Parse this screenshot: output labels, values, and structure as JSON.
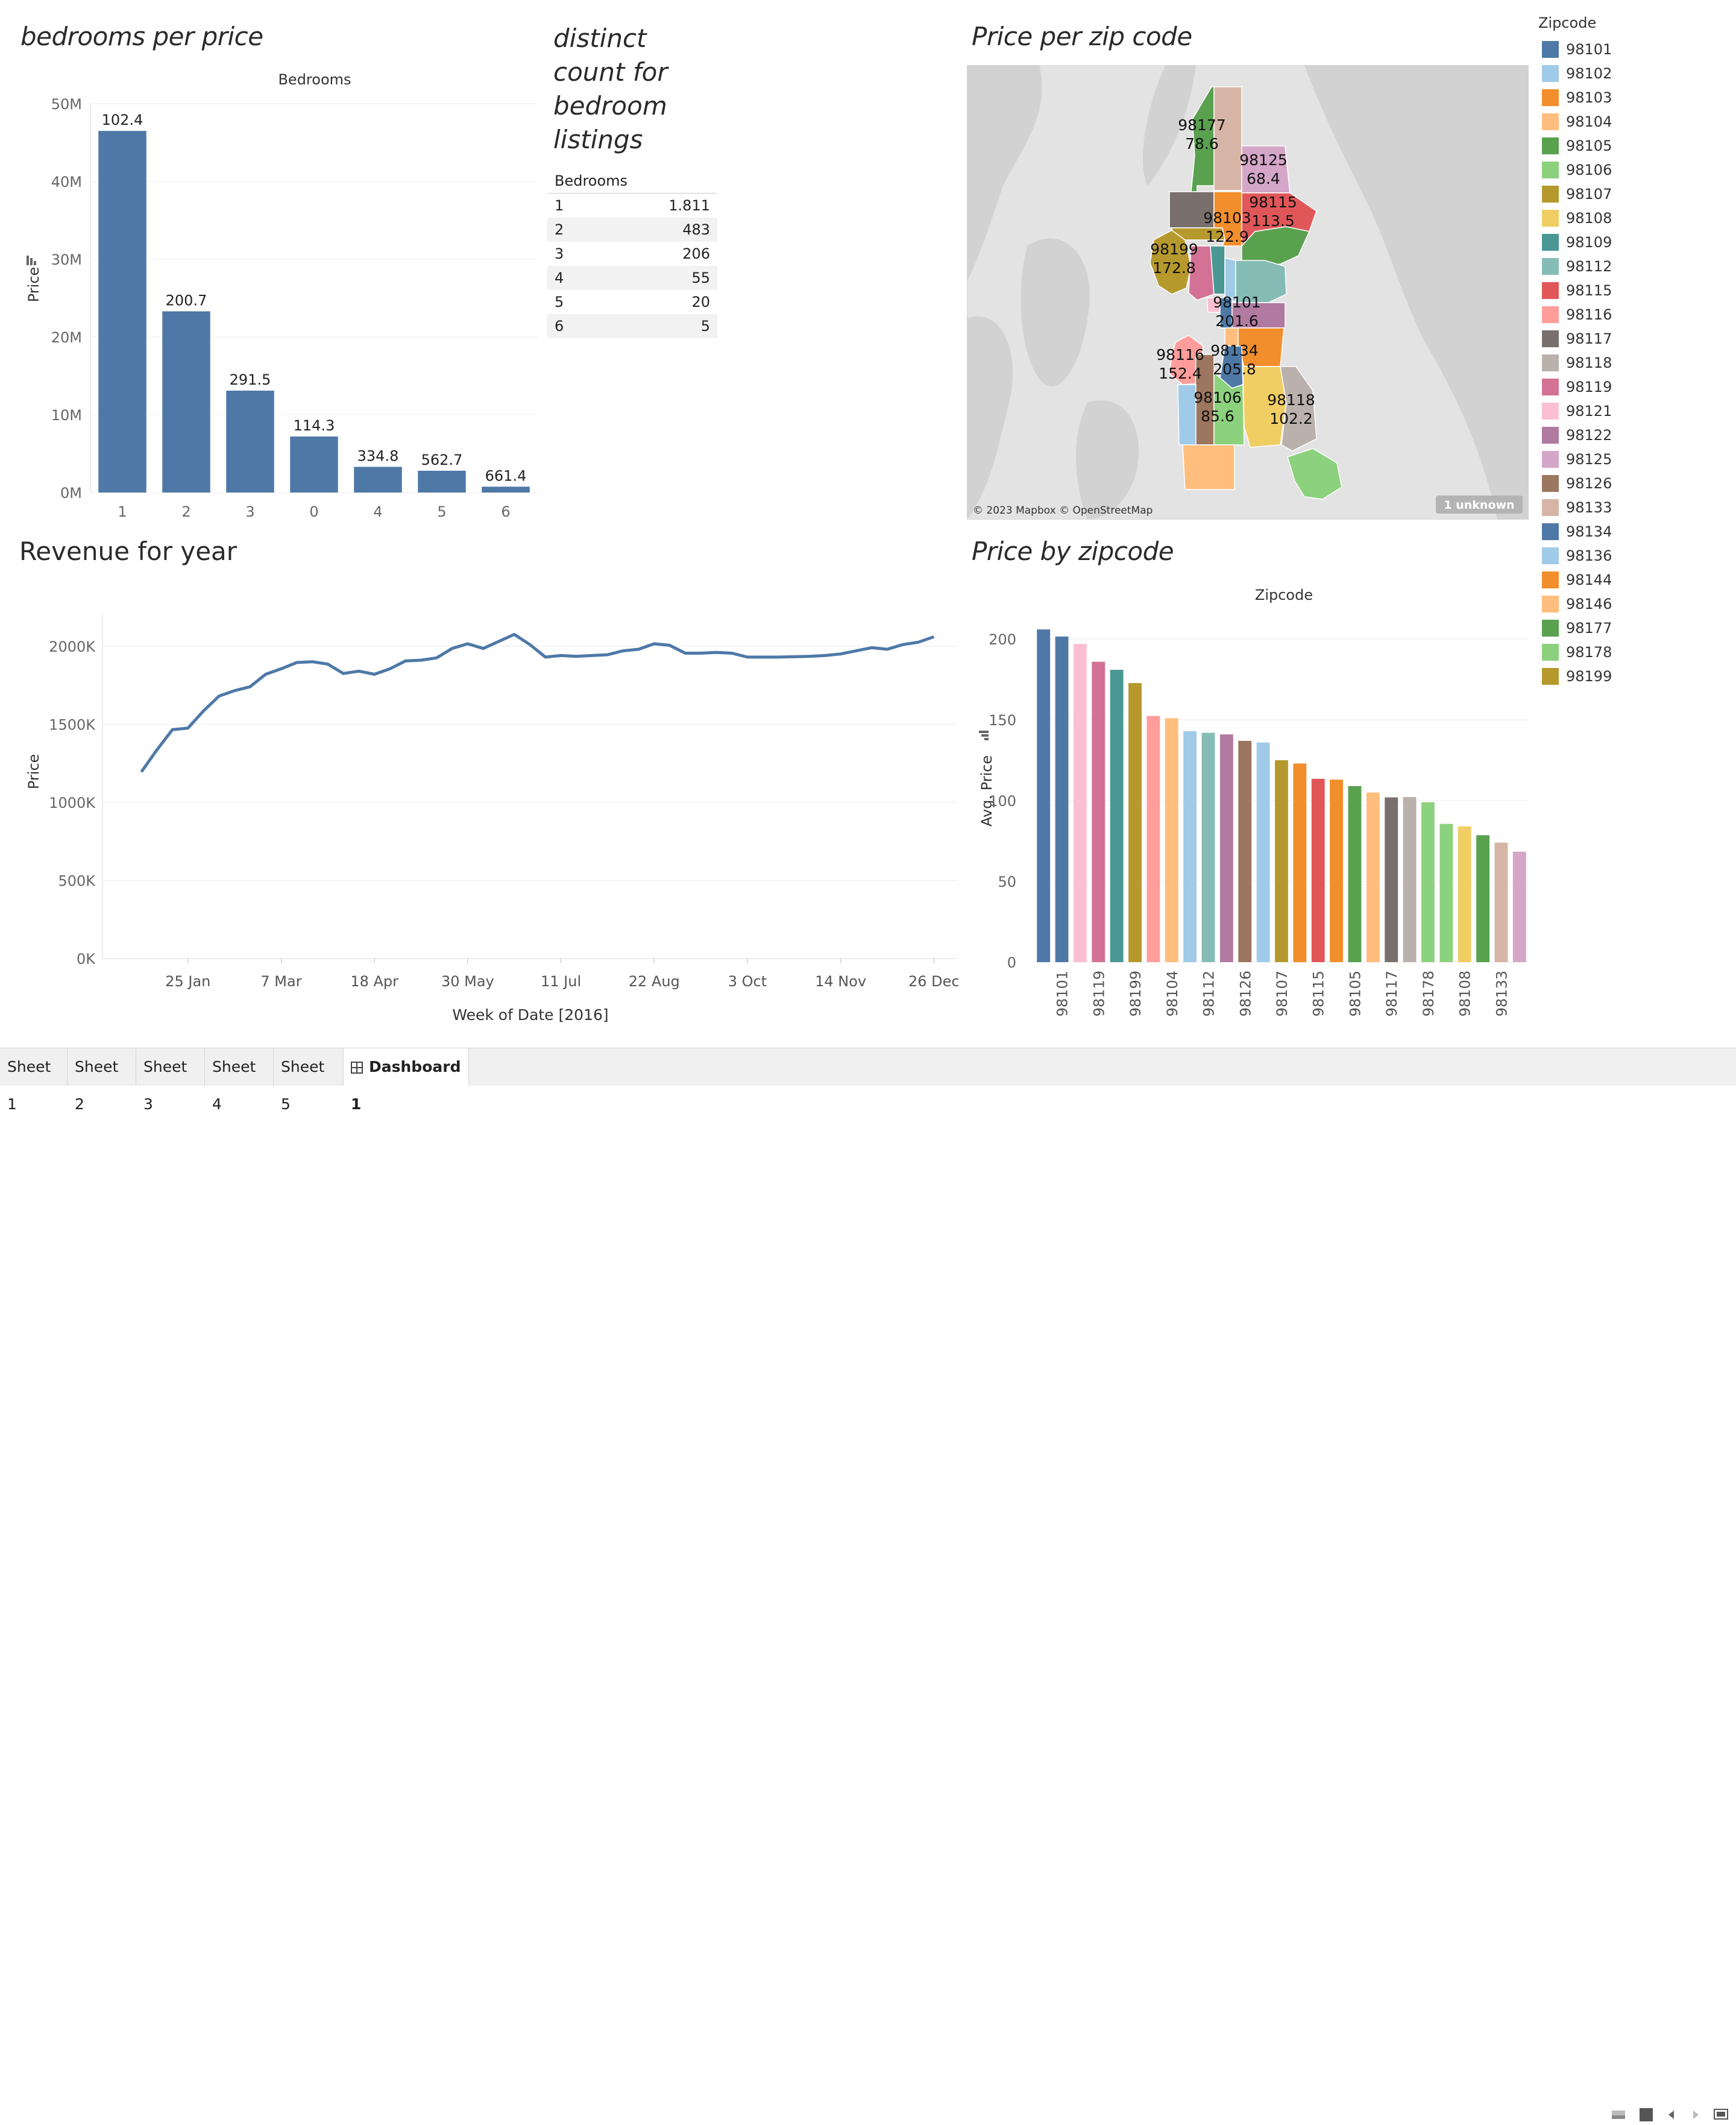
{
  "dashboard": {
    "titles": {
      "bedrooms": "bedrooms per price",
      "distinct_lines": [
        "distinct",
        "count for",
        "bedroom",
        "listings"
      ],
      "map": "Price per zip code",
      "revenue": "Revenue for year",
      "zipbars": "Price by zipcode"
    }
  },
  "bedroom_chart": {
    "type": "bar",
    "xlabel": "Bedrooms",
    "ylabel": "Price",
    "ylim": [
      0,
      50000000
    ],
    "yticks": [
      "0M",
      "10M",
      "20M",
      "30M",
      "40M",
      "50M"
    ],
    "ytick_values": [
      0,
      10000000,
      20000000,
      30000000,
      40000000,
      50000000
    ],
    "categories": [
      "1",
      "2",
      "3",
      "0",
      "4",
      "5",
      "6"
    ],
    "values": [
      46500000,
      23300000,
      13100000,
      7200000,
      3300000,
      2800000,
      750000
    ],
    "labels": [
      "102.4",
      "200.7",
      "291.5",
      "114.3",
      "334.8",
      "562.7",
      "661.4"
    ],
    "color": "#4e79a7"
  },
  "distinct_table": {
    "header": "Bedrooms",
    "rows": [
      {
        "bedrooms": "1",
        "count": "1.811"
      },
      {
        "bedrooms": "2",
        "count": "483"
      },
      {
        "bedrooms": "3",
        "count": "206"
      },
      {
        "bedrooms": "4",
        "count": "55"
      },
      {
        "bedrooms": "5",
        "count": "20"
      },
      {
        "bedrooms": "6",
        "count": "5"
      }
    ]
  },
  "map": {
    "attribution": "© 2023 Mapbox © OpenStreetMap",
    "badge": "1 unknown",
    "labels": [
      {
        "zip": "98177",
        "value": "78.6"
      },
      {
        "zip": "98125",
        "value": "68.4"
      },
      {
        "zip": "98115",
        "value": "113.5"
      },
      {
        "zip": "98103",
        "value": "122.9"
      },
      {
        "zip": "98199",
        "value": "172.8"
      },
      {
        "zip": "98101",
        "value": "201.6"
      },
      {
        "zip": "98116",
        "value": "152.4"
      },
      {
        "zip": "98134",
        "value": "205.8"
      },
      {
        "zip": "98106",
        "value": "85.6"
      },
      {
        "zip": "98118",
        "value": "102.2"
      }
    ]
  },
  "revenue_chart": {
    "type": "line",
    "xlabel": "Week of Date [2016]",
    "ylabel": "Price",
    "ylim": [
      0,
      2200000
    ],
    "yticks": [
      "0K",
      "500K",
      "1000K",
      "1500K",
      "2000K"
    ],
    "ytick_values": [
      0,
      500000,
      1000000,
      1500000,
      2000000
    ],
    "xticks": [
      "25 Jan",
      "7 Mar",
      "18 Apr",
      "30 May",
      "11 Jul",
      "22 Aug",
      "3 Oct",
      "14 Nov",
      "26 Dec"
    ],
    "xtick_weeks": [
      4,
      10,
      16,
      22,
      28,
      34,
      40,
      46,
      52
    ],
    "xrange": [
      -1.5,
      53.5
    ],
    "weeks": [
      1,
      2,
      3,
      4,
      5,
      6,
      7,
      8,
      9,
      10,
      11,
      12,
      13,
      14,
      15,
      16,
      17,
      18,
      19,
      20,
      21,
      22,
      23,
      24,
      25,
      26,
      27,
      28,
      29,
      30,
      31,
      32,
      33,
      34,
      35,
      36,
      37,
      38,
      39,
      40,
      41,
      42,
      43,
      44,
      45,
      46,
      47,
      48,
      49,
      50,
      51,
      52
    ],
    "values": [
      1195000,
      1335000,
      1465000,
      1475000,
      1585000,
      1680000,
      1715000,
      1740000,
      1820000,
      1855000,
      1895000,
      1900000,
      1885000,
      1825000,
      1840000,
      1820000,
      1855000,
      1905000,
      1910000,
      1925000,
      1985000,
      2015000,
      1985000,
      2030000,
      2075000,
      2010000,
      1930000,
      1940000,
      1935000,
      1940000,
      1945000,
      1970000,
      1980000,
      2015000,
      2005000,
      1955000,
      1955000,
      1960000,
      1955000,
      1930000,
      1930000,
      1930000,
      1932000,
      1935000,
      1940000,
      1950000,
      1970000,
      1990000,
      1980000,
      2010000,
      2025000,
      2060000
    ],
    "color": "#4e79a7"
  },
  "zip_chart": {
    "type": "bar",
    "xlabel": "Zipcode",
    "ylabel": "Avg. Price",
    "ylim": [
      0,
      215
    ],
    "yticks": [
      "0",
      "50",
      "100",
      "150",
      "200"
    ],
    "ytick_values": [
      0,
      50,
      100,
      150,
      200
    ],
    "xticklabels": [
      "98101",
      "98119",
      "98199",
      "98104",
      "98112",
      "98126",
      "98107",
      "98115",
      "98105",
      "98117",
      "98178",
      "98108",
      "98133"
    ],
    "categories": [
      "98134",
      "98101",
      "98121",
      "98119",
      "98109",
      "98199",
      "98116",
      "98104",
      "98102",
      "98112",
      "98122",
      "98126",
      "98136",
      "98107",
      "98103",
      "98115",
      "98144",
      "98105",
      "98146",
      "98117",
      "98118",
      "98178",
      "98106",
      "98108",
      "98177",
      "98133",
      "98125"
    ],
    "values": [
      206,
      201.6,
      197,
      186,
      181,
      172.8,
      152.4,
      151,
      143,
      142,
      141,
      137,
      136,
      125,
      123,
      113.5,
      113,
      109,
      105,
      102,
      102.2,
      99,
      85.6,
      84,
      78.6,
      74,
      68.4
    ]
  },
  "legend": {
    "title": "Zipcode",
    "items": [
      {
        "zip": "98101",
        "color": "#4e79a7"
      },
      {
        "zip": "98102",
        "color": "#a0cbe8"
      },
      {
        "zip": "98103",
        "color": "#f28e2b"
      },
      {
        "zip": "98104",
        "color": "#ffbe7d"
      },
      {
        "zip": "98105",
        "color": "#59a14f"
      },
      {
        "zip": "98106",
        "color": "#8cd17d"
      },
      {
        "zip": "98107",
        "color": "#b6992d"
      },
      {
        "zip": "98108",
        "color": "#f1ce63"
      },
      {
        "zip": "98109",
        "color": "#499894"
      },
      {
        "zip": "98112",
        "color": "#86bcb6"
      },
      {
        "zip": "98115",
        "color": "#e15759"
      },
      {
        "zip": "98116",
        "color": "#ff9d9a"
      },
      {
        "zip": "98117",
        "color": "#79706e"
      },
      {
        "zip": "98118",
        "color": "#bab0ac"
      },
      {
        "zip": "98119",
        "color": "#d37295"
      },
      {
        "zip": "98121",
        "color": "#fabfd2"
      },
      {
        "zip": "98122",
        "color": "#b07aa1"
      },
      {
        "zip": "98125",
        "color": "#d4a6c8"
      },
      {
        "zip": "98126",
        "color": "#9d7660"
      },
      {
        "zip": "98133",
        "color": "#d7b5a6"
      },
      {
        "zip": "98134",
        "color": "#4e79a7"
      },
      {
        "zip": "98136",
        "color": "#a0cbe8"
      },
      {
        "zip": "98144",
        "color": "#f28e2b"
      },
      {
        "zip": "98146",
        "color": "#ffbe7d"
      },
      {
        "zip": "98177",
        "color": "#59a14f"
      },
      {
        "zip": "98178",
        "color": "#8cd17d"
      },
      {
        "zip": "98199",
        "color": "#b6992d"
      }
    ]
  },
  "tabs": [
    {
      "label": "Sheet 1",
      "active": false
    },
    {
      "label": "Sheet 2",
      "active": false
    },
    {
      "label": "Sheet 3",
      "active": false
    },
    {
      "label": "Sheet 4",
      "active": false
    },
    {
      "label": "Sheet 5",
      "active": false
    },
    {
      "label": "Dashboard 1",
      "active": true
    }
  ]
}
